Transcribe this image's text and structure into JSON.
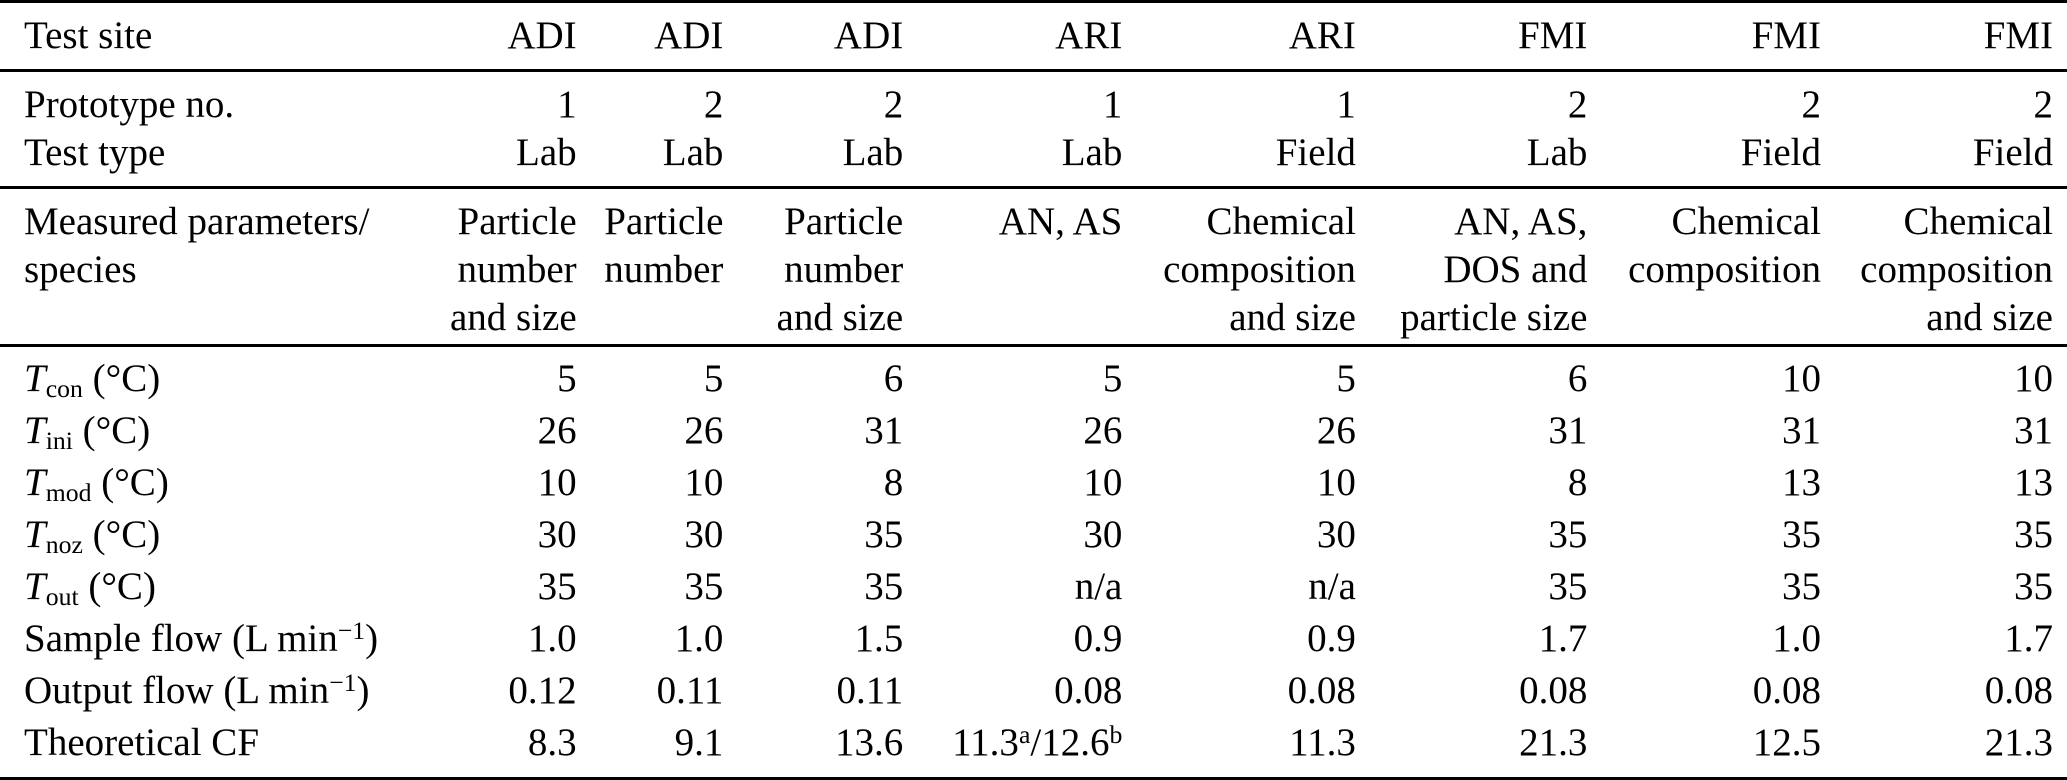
{
  "meta": {
    "background_color": "#ffffff",
    "text_color": "#000000",
    "rule_color": "#000000"
  },
  "table": {
    "sections": [
      {
        "name": "site",
        "rows": [
          {
            "name": "test-site",
            "label": "Test site",
            "cells": [
              "ADI",
              "ADI",
              "ADI",
              "ARI",
              "ARI",
              "FMI",
              "FMI",
              "FMI"
            ]
          }
        ]
      },
      {
        "name": "prototype",
        "rows": [
          {
            "name": "prototype-no",
            "label": "Prototype no.",
            "cells": [
              "1",
              "2",
              "2",
              "1",
              "1",
              "2",
              "2",
              "2"
            ]
          },
          {
            "name": "test-type",
            "label": "Test type",
            "cells": [
              "Lab",
              "Lab",
              "Lab",
              "Lab",
              "Field",
              "Lab",
              "Field",
              "Field"
            ]
          }
        ]
      },
      {
        "name": "measured",
        "rows": [
          {
            "name": "measured-parameters",
            "label": [
              "Measured parameters/",
              "species"
            ],
            "cells": [
              [
                "Particle",
                "number",
                "and size"
              ],
              [
                "Particle",
                "number"
              ],
              [
                "Particle",
                "number",
                "and size"
              ],
              [
                "AN, AS"
              ],
              [
                "Chemical",
                "composition",
                "and size"
              ],
              [
                "AN, AS,",
                "DOS and",
                "particle size"
              ],
              [
                "Chemical",
                "composition"
              ],
              [
                "Chemical",
                "composition",
                "and size"
              ]
            ]
          }
        ]
      },
      {
        "name": "operating",
        "rows": [
          {
            "name": "t-con",
            "label": [
              [
                {
                  "t": "T",
                  "s": "i"
                },
                {
                  "t": "con",
                  "s": "sub"
                },
                {
                  "t": " (°C)"
                }
              ]
            ],
            "cells": [
              "5",
              "5",
              "6",
              "5",
              "5",
              "6",
              "10",
              "10"
            ]
          },
          {
            "name": "t-ini",
            "label": [
              [
                {
                  "t": "T",
                  "s": "i"
                },
                {
                  "t": "ini",
                  "s": "sub"
                },
                {
                  "t": " (°C)"
                }
              ]
            ],
            "cells": [
              "26",
              "26",
              "31",
              "26",
              "26",
              "31",
              "31",
              "31"
            ]
          },
          {
            "name": "t-mod",
            "label": [
              [
                {
                  "t": "T",
                  "s": "i"
                },
                {
                  "t": "mod",
                  "s": "sub"
                },
                {
                  "t": " (°C)"
                }
              ]
            ],
            "cells": [
              "10",
              "10",
              "8",
              "10",
              "10",
              "8",
              "13",
              "13"
            ]
          },
          {
            "name": "t-noz",
            "label": [
              [
                {
                  "t": "T",
                  "s": "i"
                },
                {
                  "t": "noz",
                  "s": "sub"
                },
                {
                  "t": " (°C)"
                }
              ]
            ],
            "cells": [
              "30",
              "30",
              "35",
              "30",
              "30",
              "35",
              "35",
              "35"
            ]
          },
          {
            "name": "t-out",
            "label": [
              [
                {
                  "t": "T",
                  "s": "i"
                },
                {
                  "t": "out",
                  "s": "sub"
                },
                {
                  "t": " (°C)"
                }
              ]
            ],
            "cells": [
              "35",
              "35",
              "35",
              "n/a",
              "n/a",
              "35",
              "35",
              "35"
            ]
          },
          {
            "name": "sample-flow",
            "label": [
              [
                {
                  "t": "Sample flow (L min"
                },
                {
                  "t": "−1",
                  "s": "sup"
                },
                {
                  "t": ")"
                }
              ]
            ],
            "cells": [
              "1.0",
              "1.0",
              "1.5",
              "0.9",
              "0.9",
              "1.7",
              "1.0",
              "1.7"
            ]
          },
          {
            "name": "output-flow",
            "label": [
              [
                {
                  "t": "Output flow (L min"
                },
                {
                  "t": "−1",
                  "s": "sup"
                },
                {
                  "t": ")"
                }
              ]
            ],
            "cells": [
              "0.12",
              "0.11",
              "0.11",
              "0.08",
              "0.08",
              "0.08",
              "0.08",
              "0.08"
            ]
          },
          {
            "name": "theoretical-cf",
            "label": "Theoretical CF",
            "cells": [
              "8.3",
              "9.1",
              "13.6",
              [
                [
                  {
                    "t": "11.3"
                  },
                  {
                    "t": "a",
                    "s": "sup"
                  },
                  {
                    "t": "/12.6"
                  },
                  {
                    "t": "b",
                    "s": "sup"
                  }
                ]
              ],
              "11.3",
              "21.3",
              "12.5",
              "21.3"
            ]
          }
        ]
      }
    ]
  }
}
